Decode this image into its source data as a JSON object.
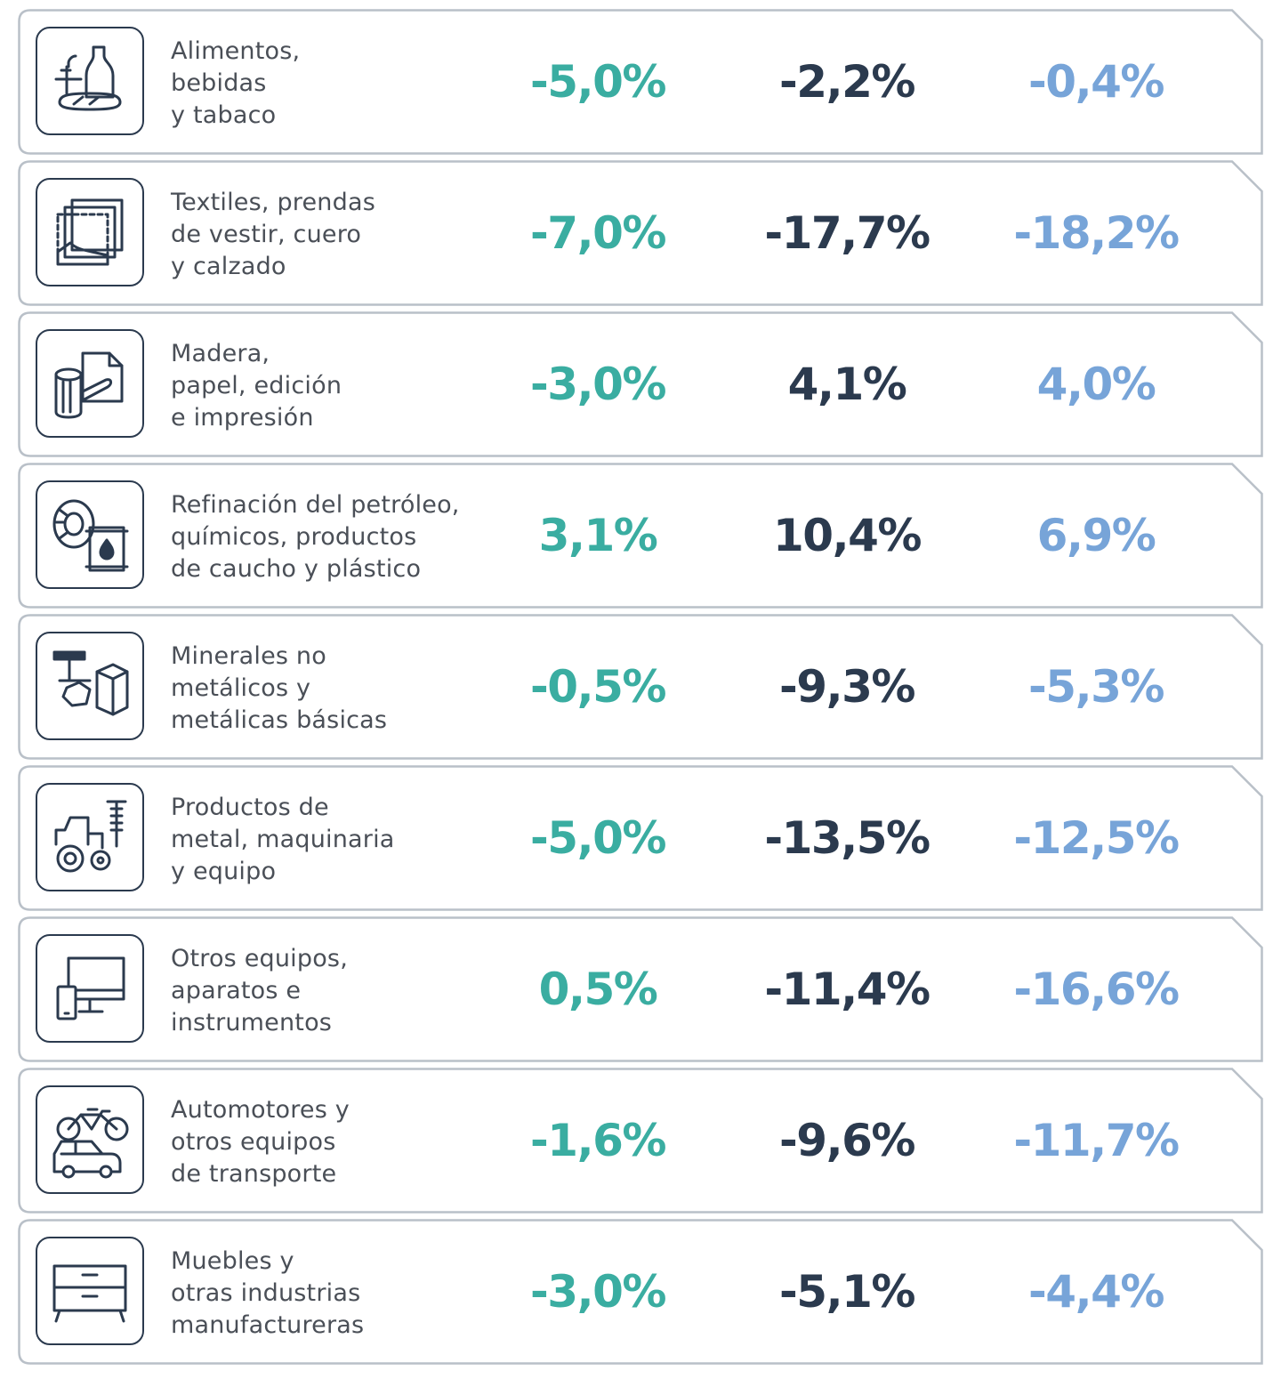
{
  "colors": {
    "col1": "#3aada1",
    "col2": "#2b3a4e",
    "col3": "#77a4d8",
    "border": "#b9c0c8",
    "text": "#4a4f57"
  },
  "rows": [
    {
      "icon": "bottle-bread-icon",
      "label": [
        "Alimentos,",
        "bebidas",
        "y tabaco"
      ],
      "v1": "-5,0%",
      "v2": "-2,2%",
      "v3": "-0,4%"
    },
    {
      "icon": "fabric-shoe-icon",
      "label": [
        "Textiles, prendas",
        "de vestir, cuero",
        "y calzado"
      ],
      "v1": "-7,0%",
      "v2": "-17,7%",
      "v3": "-18,2%"
    },
    {
      "icon": "wood-paper-icon",
      "label": [
        "Madera,",
        "papel, edición",
        "e impresión"
      ],
      "v1": "-3,0%",
      "v2": "4,1%",
      "v3": "4,0%"
    },
    {
      "icon": "tire-oil-drum-icon",
      "label": [
        "Refinación del petróleo,",
        "químicos, productos",
        "de caucho y plástico"
      ],
      "v1": "3,1%",
      "v2": "10,4%",
      "v3": "6,9%"
    },
    {
      "icon": "minerals-metal-icon",
      "label": [
        "Minerales no",
        "metálicos y",
        "metálicas básicas"
      ],
      "v1": "-0,5%",
      "v2": "-9,3%",
      "v3": "-5,3%"
    },
    {
      "icon": "tractor-screw-icon",
      "label": [
        "Productos de",
        "metal, maquinaria",
        "y equipo"
      ],
      "v1": "-5,0%",
      "v2": "-13,5%",
      "v3": "-12,5%"
    },
    {
      "icon": "monitor-phone-icon",
      "label": [
        "Otros equipos,",
        "aparatos e",
        "instrumentos"
      ],
      "v1": "0,5%",
      "v2": "-11,4%",
      "v3": "-16,6%"
    },
    {
      "icon": "car-bicycle-icon",
      "label": [
        "Automotores y",
        "otros equipos",
        "de transporte"
      ],
      "v1": "-1,6%",
      "v2": "-9,6%",
      "v3": "-11,7%"
    },
    {
      "icon": "furniture-icon",
      "label": [
        "Muebles y",
        "otras industrias",
        "manufactureras"
      ],
      "v1": "-3,0%",
      "v2": "-5,1%",
      "v3": "-4,4%"
    }
  ]
}
